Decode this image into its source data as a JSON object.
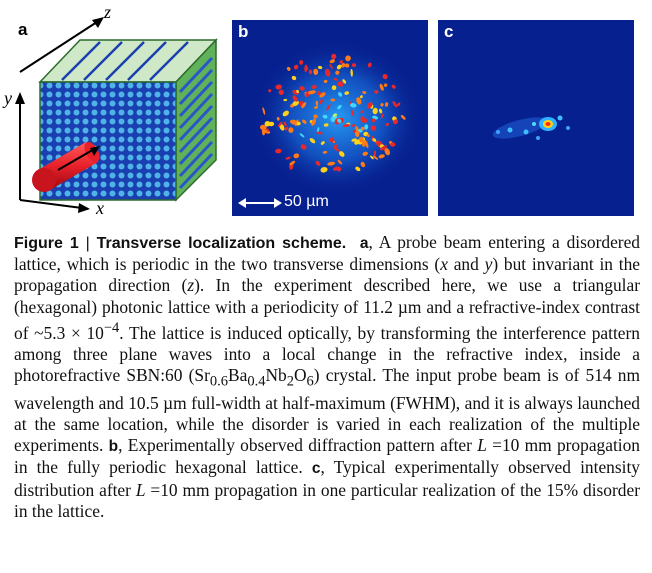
{
  "figure": {
    "panel_a": {
      "label": "a",
      "axis_z": "z",
      "axis_y": "y",
      "axis_x": "x"
    },
    "panel_b": {
      "label": "b",
      "scale_bar": "50 µm"
    },
    "panel_c": {
      "label": "c"
    },
    "colors": {
      "background_deep_blue": "#07208f",
      "crystal_green": "#5fb25a",
      "beam_red": "#e8202a"
    },
    "caption": {
      "title": "Figure 1",
      "separator": "|",
      "heading": "Transverse localization scheme.",
      "label_a": "a",
      "text_a1": ", A probe beam entering a disordered lattice, which is periodic in the two transverse dimensions (",
      "var_x": "x",
      "and": " and ",
      "var_y": "y",
      "text_a2": ") but invariant in the propagation direction (",
      "var_z": "z",
      "text_a3": "). In the experiment described here, we use a triangular (hexagonal) photonic lattice with a periodicity of 11.2 µm and a refractive-index contrast of ~5.3 × 10",
      "exp": "−4",
      "text_a4": ". The lattice is induced optically, by transforming the interference pattern among three plane waves into a local change in the refractive index, inside a photorefractive SBN:60 (Sr",
      "sub_sr": "0.6",
      "ba": "Ba",
      "sub_ba": "0.4",
      "nb": "Nb",
      "sub_nb": "2",
      "o": "O",
      "sub_o": "6",
      "text_a5": ") crystal. The input probe beam is of 514 nm wavelength and 10.5 µm full-width at half-maximum (FWHM), and it is always launched at the same location, while the disorder is varied in each realization of the multiple experiments. ",
      "label_b": "b",
      "text_b1": ", Experimentally observed diffraction pattern after ",
      "var_L": "L",
      "text_b2": " =10 mm propagation in the fully periodic hexagonal lattice. ",
      "label_c": "c",
      "text_c1": ", Typical experimentally observed intensity distribution after ",
      "text_c2": " =10 mm propagation in one particular realization of the 15% disorder in the lattice."
    }
  }
}
